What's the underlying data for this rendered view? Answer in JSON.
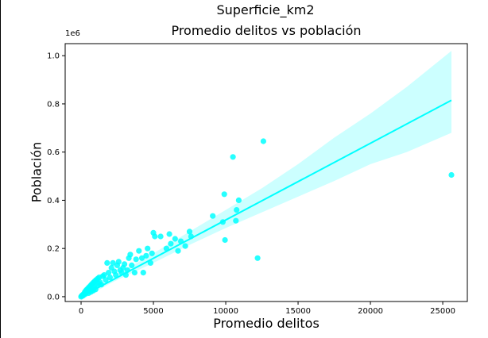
{
  "figure": {
    "suptitle": "Superficie_km2"
  },
  "chart_data": {
    "type": "scatter",
    "title": "Promedio delitos vs población",
    "xlabel": "Promedio delitos",
    "ylabel": "Población",
    "y_offset_label": "1e6",
    "xlim": [
      -1100,
      26700
    ],
    "ylim": [
      -0.02,
      1.05
    ],
    "x_ticks": [
      0,
      5000,
      10000,
      15000,
      20000,
      25000
    ],
    "x_tick_labels": [
      "0",
      "5000",
      "10000",
      "15000",
      "20000",
      "25000"
    ],
    "y_ticks": [
      0.0,
      0.2,
      0.4,
      0.6,
      0.8,
      1.0
    ],
    "y_tick_labels": [
      "0.0",
      "0.2",
      "0.4",
      "0.6",
      "0.8",
      "1.0"
    ],
    "grid": false,
    "colors": {
      "points": "#00ffff",
      "line": "#00ffff",
      "band": "#ccffff"
    },
    "regression": {
      "x": [
        0,
        25600
      ],
      "y": [
        0.0,
        0.815
      ]
    },
    "confidence_band": {
      "x": [
        0,
        2000,
        5000,
        7500,
        10000,
        12500,
        15000,
        17500,
        20000,
        22500,
        25600
      ],
      "upper": [
        0.015,
        0.075,
        0.18,
        0.27,
        0.36,
        0.45,
        0.55,
        0.66,
        0.76,
        0.87,
        1.02
      ],
      "lower": [
        -0.015,
        0.055,
        0.14,
        0.215,
        0.285,
        0.35,
        0.415,
        0.48,
        0.55,
        0.6,
        0.68
      ]
    },
    "points": [
      {
        "x": 0,
        "y": 0.0
      },
      {
        "x": 40,
        "y": 0.003
      },
      {
        "x": 80,
        "y": 0.006
      },
      {
        "x": 120,
        "y": 0.004
      },
      {
        "x": 160,
        "y": 0.01
      },
      {
        "x": 200,
        "y": 0.008
      },
      {
        "x": 230,
        "y": 0.015
      },
      {
        "x": 260,
        "y": 0.02
      },
      {
        "x": 300,
        "y": 0.012
      },
      {
        "x": 330,
        "y": 0.025
      },
      {
        "x": 370,
        "y": 0.018
      },
      {
        "x": 400,
        "y": 0.03
      },
      {
        "x": 440,
        "y": 0.022
      },
      {
        "x": 480,
        "y": 0.035
      },
      {
        "x": 520,
        "y": 0.015
      },
      {
        "x": 560,
        "y": 0.04
      },
      {
        "x": 600,
        "y": 0.028
      },
      {
        "x": 640,
        "y": 0.045
      },
      {
        "x": 680,
        "y": 0.02
      },
      {
        "x": 720,
        "y": 0.05
      },
      {
        "x": 760,
        "y": 0.035
      },
      {
        "x": 800,
        "y": 0.055
      },
      {
        "x": 840,
        "y": 0.025
      },
      {
        "x": 880,
        "y": 0.06
      },
      {
        "x": 920,
        "y": 0.04
      },
      {
        "x": 960,
        "y": 0.065
      },
      {
        "x": 1000,
        "y": 0.03
      },
      {
        "x": 1050,
        "y": 0.07
      },
      {
        "x": 1100,
        "y": 0.045
      },
      {
        "x": 1150,
        "y": 0.075
      },
      {
        "x": 1200,
        "y": 0.055
      },
      {
        "x": 1250,
        "y": 0.08
      },
      {
        "x": 1300,
        "y": 0.06
      },
      {
        "x": 1400,
        "y": 0.05
      },
      {
        "x": 1500,
        "y": 0.085
      },
      {
        "x": 1600,
        "y": 0.09
      },
      {
        "x": 1700,
        "y": 0.07
      },
      {
        "x": 1800,
        "y": 0.14
      },
      {
        "x": 1900,
        "y": 0.1
      },
      {
        "x": 2000,
        "y": 0.08
      },
      {
        "x": 2100,
        "y": 0.12
      },
      {
        "x": 2200,
        "y": 0.14
      },
      {
        "x": 2300,
        "y": 0.105
      },
      {
        "x": 2400,
        "y": 0.09
      },
      {
        "x": 2500,
        "y": 0.13
      },
      {
        "x": 2600,
        "y": 0.145
      },
      {
        "x": 2700,
        "y": 0.11
      },
      {
        "x": 2800,
        "y": 0.1
      },
      {
        "x": 2900,
        "y": 0.12
      },
      {
        "x": 3000,
        "y": 0.135
      },
      {
        "x": 3100,
        "y": 0.09
      },
      {
        "x": 3200,
        "y": 0.11
      },
      {
        "x": 3300,
        "y": 0.16
      },
      {
        "x": 3400,
        "y": 0.175
      },
      {
        "x": 3500,
        "y": 0.13
      },
      {
        "x": 3700,
        "y": 0.1
      },
      {
        "x": 3800,
        "y": 0.155
      },
      {
        "x": 4000,
        "y": 0.19
      },
      {
        "x": 4200,
        "y": 0.16
      },
      {
        "x": 4300,
        "y": 0.1
      },
      {
        "x": 4500,
        "y": 0.17
      },
      {
        "x": 4600,
        "y": 0.2
      },
      {
        "x": 4800,
        "y": 0.14
      },
      {
        "x": 4900,
        "y": 0.18
      },
      {
        "x": 5000,
        "y": 0.265
      },
      {
        "x": 5100,
        "y": 0.25
      },
      {
        "x": 5500,
        "y": 0.25
      },
      {
        "x": 5900,
        "y": 0.2
      },
      {
        "x": 6100,
        "y": 0.26
      },
      {
        "x": 6200,
        "y": 0.22
      },
      {
        "x": 6500,
        "y": 0.24
      },
      {
        "x": 6700,
        "y": 0.19
      },
      {
        "x": 6900,
        "y": 0.23
      },
      {
        "x": 7200,
        "y": 0.21
      },
      {
        "x": 7500,
        "y": 0.27
      },
      {
        "x": 7600,
        "y": 0.25
      },
      {
        "x": 9100,
        "y": 0.335
      },
      {
        "x": 9800,
        "y": 0.31
      },
      {
        "x": 9900,
        "y": 0.425
      },
      {
        "x": 9950,
        "y": 0.235
      },
      {
        "x": 10500,
        "y": 0.58
      },
      {
        "x": 10700,
        "y": 0.315
      },
      {
        "x": 10750,
        "y": 0.36
      },
      {
        "x": 10900,
        "y": 0.4
      },
      {
        "x": 12200,
        "y": 0.16
      },
      {
        "x": 12600,
        "y": 0.645
      },
      {
        "x": 25600,
        "y": 0.505
      }
    ]
  }
}
